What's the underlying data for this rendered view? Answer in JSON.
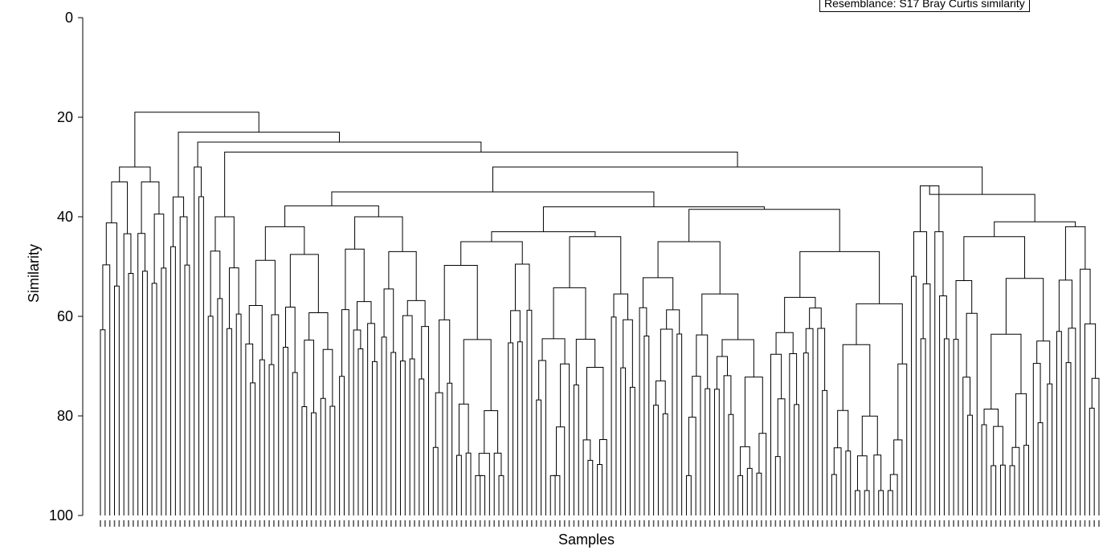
{
  "chart_data": {
    "type": "dendrogram",
    "annotation": "Resemblance: S17 Bray Curtis similarity",
    "ylabel": "Similarity",
    "xlabel": "Samples",
    "ylim": [
      0,
      100
    ],
    "y_ticks": [
      "0",
      "20",
      "40",
      "60",
      "80",
      "100"
    ],
    "n_samples": 260,
    "root_merge_similarity": 19,
    "major_merges": [
      {
        "similarity": 19,
        "description": "root split: left group vs rest"
      },
      {
        "similarity": 23,
        "description": "second-level split"
      },
      {
        "similarity": 25,
        "description": "third-level split"
      },
      {
        "similarity": 27,
        "description": "main split of large central cluster"
      },
      {
        "similarity": 30,
        "description": "left group (samples 1-20)"
      },
      {
        "similarity": 30,
        "description": "central cluster vs right cluster"
      },
      {
        "similarity": 34,
        "description": "right sub-cluster"
      },
      {
        "similarity": 35,
        "description": "central sub-cluster"
      },
      {
        "similarity": 36,
        "description": "right sub-cluster"
      },
      {
        "similarity": 38,
        "description": "central sub-cluster"
      },
      {
        "similarity": 39,
        "description": "central sub-cluster"
      },
      {
        "similarity": 41,
        "description": "far-right sub-cluster"
      }
    ]
  }
}
